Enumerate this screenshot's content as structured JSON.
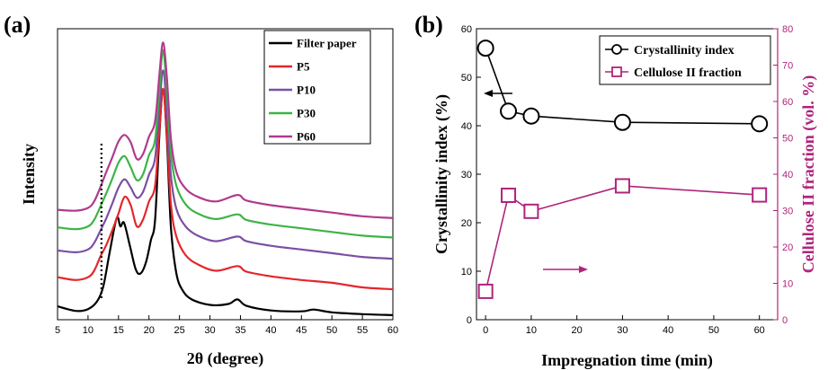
{
  "chart_data": [
    {
      "panel_label": "(a)",
      "type": "line",
      "xlabel": "2θ (degree)",
      "ylabel": "Intensity",
      "xlim": [
        5,
        60
      ],
      "x_ticks": [
        "5",
        "10",
        "15",
        "20",
        "25",
        "30",
        "35",
        "40",
        "45",
        "50",
        "55",
        "60"
      ],
      "legend_position": "top-right",
      "series": [
        {
          "name": "Filter paper",
          "color": "#000000",
          "baseline": 0.5,
          "points": [
            [
              5,
              1.45
            ],
            [
              8,
              0.95
            ],
            [
              10,
              1.15
            ],
            [
              11.5,
              2.0
            ],
            [
              12.5,
              3.6
            ],
            [
              13.5,
              7.1
            ],
            [
              14.7,
              11.0
            ],
            [
              15.3,
              10.1
            ],
            [
              15.9,
              10.5
            ],
            [
              16.8,
              8.2
            ],
            [
              17.8,
              5.5
            ],
            [
              18.6,
              5.0
            ],
            [
              19.5,
              6.2
            ],
            [
              20.3,
              8.6
            ],
            [
              21.0,
              10.8
            ],
            [
              21.7,
              20.0
            ],
            [
              22.3,
              25.0
            ],
            [
              22.9,
              20.0
            ],
            [
              23.6,
              10.0
            ],
            [
              24.5,
              5.0
            ],
            [
              25.5,
              3.2
            ],
            [
              27,
              2.2
            ],
            [
              30,
              1.6
            ],
            [
              33,
              1.7
            ],
            [
              34.5,
              2.2
            ],
            [
              36,
              1.5
            ],
            [
              40,
              1.0
            ],
            [
              45,
              0.9
            ],
            [
              47,
              1.1
            ],
            [
              50,
              0.8
            ],
            [
              55,
              0.6
            ],
            [
              60,
              0.5
            ]
          ]
        },
        {
          "name": "P5",
          "color": "#e3262b",
          "baseline": 3.0,
          "points": [
            [
              5,
              4.6
            ],
            [
              8,
              4.3
            ],
            [
              10,
              4.6
            ],
            [
              11,
              5.3
            ],
            [
              12,
              6.8
            ],
            [
              13,
              8.1
            ],
            [
              14,
              9.7
            ],
            [
              15,
              11.5
            ],
            [
              16,
              13.3
            ],
            [
              17,
              12.4
            ],
            [
              18,
              10.1
            ],
            [
              19,
              10.8
            ],
            [
              20,
              12.8
            ],
            [
              21,
              14.5
            ],
            [
              21.7,
              20.5
            ],
            [
              22.3,
              25.0
            ],
            [
              22.9,
              20.5
            ],
            [
              23.6,
              12.5
            ],
            [
              24.5,
              9.0
            ],
            [
              26,
              7.0
            ],
            [
              28,
              6.0
            ],
            [
              31,
              5.3
            ],
            [
              34.5,
              5.8
            ],
            [
              36,
              5.2
            ],
            [
              40,
              4.7
            ],
            [
              45,
              4.3
            ],
            [
              50,
              4.0
            ],
            [
              55,
              3.5
            ],
            [
              60,
              3.3
            ]
          ]
        },
        {
          "name": "P10",
          "color": "#7b4fa3",
          "baseline": 6.1,
          "points": [
            [
              5,
              7.5
            ],
            [
              8,
              7.3
            ],
            [
              10,
              7.6
            ],
            [
              11,
              8.3
            ],
            [
              12,
              9.6
            ],
            [
              13,
              11.0
            ],
            [
              14,
              12.6
            ],
            [
              15,
              14.3
            ],
            [
              16,
              15.2
            ],
            [
              17,
              14.3
            ],
            [
              18,
              13.2
            ],
            [
              19,
              13.8
            ],
            [
              20,
              15.7
            ],
            [
              21,
              17.5
            ],
            [
              21.7,
              23.0
            ],
            [
              22.3,
              27.0
            ],
            [
              22.9,
              23.0
            ],
            [
              23.6,
              15.6
            ],
            [
              24.5,
              12.0
            ],
            [
              26,
              10.1
            ],
            [
              28,
              9.1
            ],
            [
              31,
              8.5
            ],
            [
              34.5,
              9.0
            ],
            [
              36,
              8.5
            ],
            [
              40,
              8.0
            ],
            [
              45,
              7.6
            ],
            [
              50,
              7.2
            ],
            [
              55,
              6.8
            ],
            [
              60,
              6.6
            ]
          ]
        },
        {
          "name": "P30",
          "color": "#3cb447",
          "baseline": 8.3,
          "points": [
            [
              5,
              10.0
            ],
            [
              8,
              9.8
            ],
            [
              10,
              10.1
            ],
            [
              11,
              10.8
            ],
            [
              12,
              12.2
            ],
            [
              13,
              13.7
            ],
            [
              14,
              15.3
            ],
            [
              15,
              17.0
            ],
            [
              16,
              17.7
            ],
            [
              17,
              16.5
            ],
            [
              18,
              15.1
            ],
            [
              19,
              15.7
            ],
            [
              20,
              17.8
            ],
            [
              21,
              19.5
            ],
            [
              21.7,
              25.0
            ],
            [
              22.3,
              29.2
            ],
            [
              22.9,
              25.0
            ],
            [
              23.6,
              18.0
            ],
            [
              24.5,
              14.5
            ],
            [
              26,
              12.5
            ],
            [
              28,
              11.5
            ],
            [
              31,
              10.9
            ],
            [
              34.5,
              11.4
            ],
            [
              36,
              10.8
            ],
            [
              40,
              10.3
            ],
            [
              45,
              9.9
            ],
            [
              50,
              9.5
            ],
            [
              55,
              9.1
            ],
            [
              60,
              8.9
            ]
          ]
        },
        {
          "name": "P60",
          "color": "#b03a8e",
          "baseline": 9.0,
          "points": [
            [
              5,
              11.9
            ],
            [
              8,
              11.8
            ],
            [
              10,
              12.1
            ],
            [
              11,
              12.8
            ],
            [
              12,
              14.3
            ],
            [
              13,
              16.0
            ],
            [
              14,
              17.6
            ],
            [
              15,
              19.3
            ],
            [
              16,
              20.0
            ],
            [
              17,
              19.2
            ],
            [
              18,
              17.4
            ],
            [
              19,
              17.9
            ],
            [
              20,
              19.8
            ],
            [
              21,
              21.5
            ],
            [
              21.7,
              26.5
            ],
            [
              22.3,
              30.0
            ],
            [
              22.9,
              26.5
            ],
            [
              23.6,
              19.6
            ],
            [
              24.5,
              16.0
            ],
            [
              26,
              14.2
            ],
            [
              28,
              13.3
            ],
            [
              31,
              12.8
            ],
            [
              34.5,
              13.5
            ],
            [
              36,
              12.9
            ],
            [
              40,
              12.4
            ],
            [
              45,
              12.0
            ],
            [
              50,
              11.6
            ],
            [
              55,
              11.2
            ],
            [
              60,
              11.0
            ]
          ]
        }
      ],
      "annotation": {
        "type": "vertical-dotted-line",
        "x": 12.2
      }
    },
    {
      "panel_label": "(b)",
      "type": "line",
      "xlabel": "Impregnation time (min)",
      "ylabel_left": "Crystallinity index (%)",
      "ylabel_right": "Cellulose II fraction (vol. %)",
      "xlim": [
        -2,
        64
      ],
      "ylim_left": [
        0,
        60
      ],
      "ylim_right": [
        0,
        80
      ],
      "x_ticks": [
        "0",
        "10",
        "20",
        "30",
        "40",
        "50",
        "60"
      ],
      "y_ticks_left": [
        "0",
        "10",
        "20",
        "30",
        "40",
        "50",
        "60"
      ],
      "y_ticks_right": [
        "0",
        "10",
        "20",
        "30",
        "40",
        "50",
        "60",
        "70",
        "80"
      ],
      "legend_position": "top-right",
      "colors": {
        "left": "#000000",
        "right": "#b0247c"
      },
      "series": [
        {
          "name": "Crystallinity index",
          "axis": "left",
          "marker": "circle",
          "x": [
            0,
            5,
            10,
            30,
            60
          ],
          "y": [
            56,
            43,
            42,
            40.7,
            40.4
          ]
        },
        {
          "name": "Cellulose II fraction",
          "axis": "right",
          "marker": "square",
          "x": [
            0,
            5,
            10,
            30,
            60
          ],
          "y": [
            7.8,
            34.2,
            29.8,
            36.8,
            34.3
          ]
        }
      ],
      "arrows": [
        {
          "series": "Crystallinity index",
          "direction": "left"
        },
        {
          "series": "Cellulose II fraction",
          "direction": "right"
        }
      ]
    }
  ]
}
